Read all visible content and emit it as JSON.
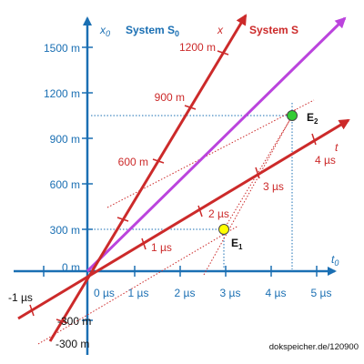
{
  "system_s0_label": "System S",
  "system_s0_sub": "0",
  "system_s_label": "System S",
  "axis_x0_label": "x",
  "axis_x0_sub": "0",
  "axis_t0_label": "t",
  "axis_t0_sub": "0",
  "axis_x_label": "x",
  "axis_t_label": "t",
  "x0_ticks": [
    "-300 m",
    "0 m",
    "300 m",
    "600 m",
    "900 m",
    "1200 m",
    "1500 m"
  ],
  "t0_ticks": [
    "-1 µs",
    "0 µs",
    "1 µs",
    "2 µs",
    "3 µs",
    "4 µs",
    "5 µs"
  ],
  "x_axis_ticks": [
    "-300 m",
    "600 m",
    "900 m",
    "1200 m"
  ],
  "t_axis_ticks": [
    "1 µs",
    "2 µs",
    "3 µs",
    "4 µs"
  ],
  "event_1": {
    "label": "E",
    "sub": "1",
    "t0": 2.9,
    "x0": 300,
    "color": "#ffff00"
  },
  "event_2": {
    "label": "E",
    "sub": "2",
    "t0": 4.4,
    "x0": 1050,
    "color": "#33cc33"
  },
  "credit": "dokspeicher.de/120900",
  "colors": {
    "axis_blue": "#1a6fb3",
    "axis_red": "#cc2a2a",
    "light_line": "#bb44dd"
  }
}
